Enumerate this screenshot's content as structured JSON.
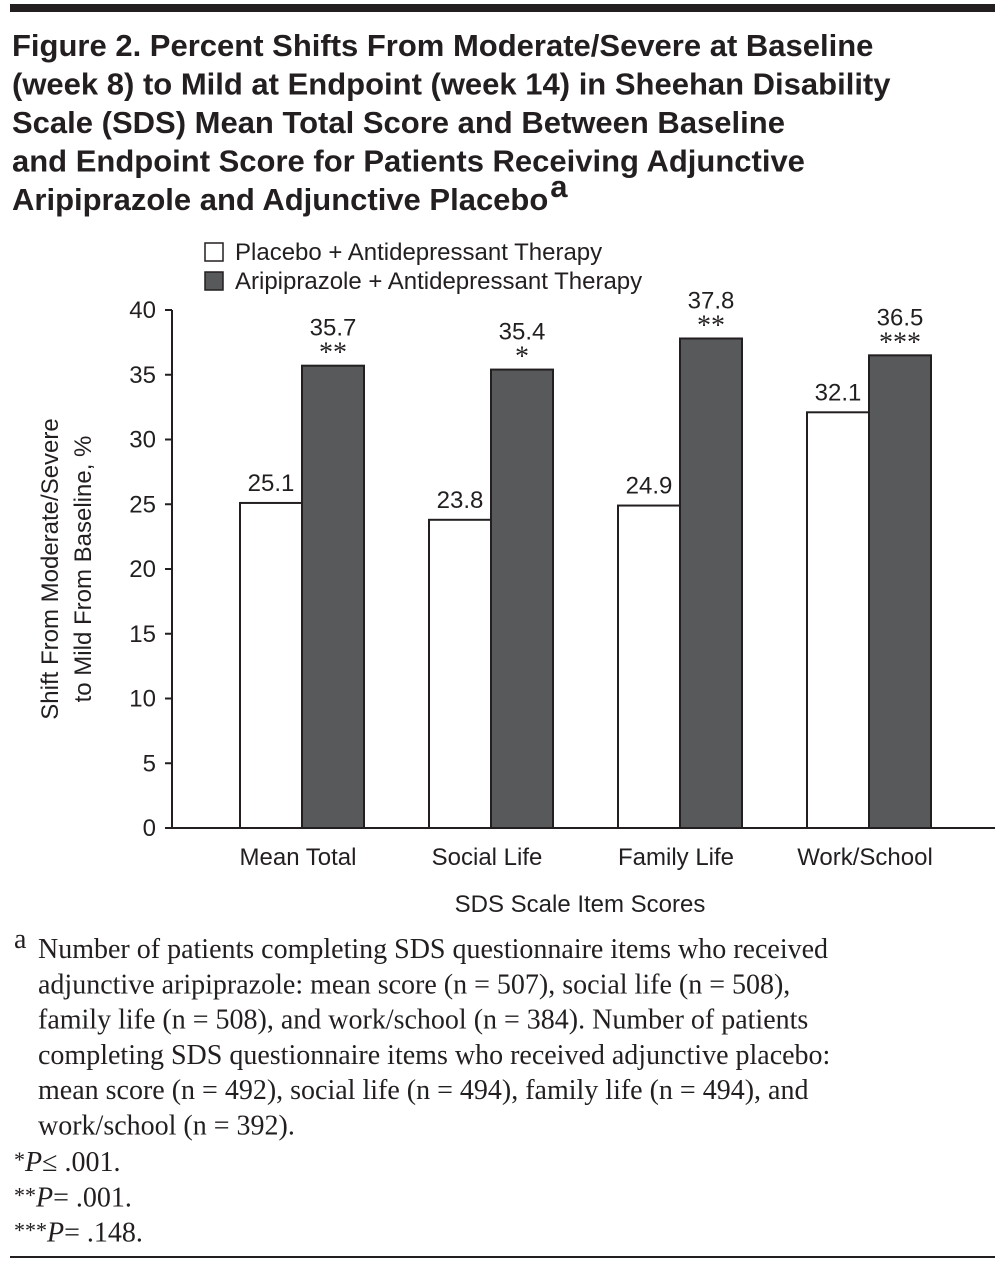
{
  "chart_data": {
    "type": "bar",
    "title": [
      "Figure 2. Percent Shifts From Moderate/Severe at Baseline",
      "(week 8) to Mild at Endpoint (week 14) in Sheehan Disability",
      "Scale (SDS) Mean Total Score and Between Baseline",
      "and Endpoint Score for Patients Receiving Adjunctive",
      "Aripiprazole and Adjunctive Placebo"
    ],
    "title_superscript": "a",
    "categories": [
      "Mean Total",
      "Social Life",
      "Family Life",
      "Work/School"
    ],
    "series": [
      {
        "name": "Placebo + Antidepressant Therapy",
        "color": "#ffffff",
        "values": [
          25.1,
          23.8,
          24.9,
          32.1
        ]
      },
      {
        "name": "Aripiprazole + Antidepressant Therapy",
        "color": "#58595b",
        "values": [
          35.7,
          35.4,
          37.8,
          36.5
        ],
        "significance": [
          "**",
          "*",
          "**",
          "***"
        ]
      }
    ],
    "xlabel": "SDS Scale Item Scores",
    "ylabel": [
      "Shift From Moderate/Severe",
      "to Mild From Baseline, %"
    ],
    "ylim": [
      0,
      40
    ],
    "yticks": [
      0,
      5,
      10,
      15,
      20,
      25,
      30,
      35,
      40
    ],
    "footnote": {
      "marker": "a",
      "lines": [
        "Number of patients completing SDS questionnaire items who received",
        "adjunctive aripiprazole: mean score (n = 507), social life (n = 508),",
        "family life (n = 508), and work/school (n = 384). Number of patients",
        "completing SDS questionnaire items who received adjunctive placebo:",
        "mean score (n = 492), social life (n = 494), family life (n = 494), and",
        "work/school (n = 392)."
      ]
    },
    "significance_notes": [
      {
        "symbol": "*",
        "stat": "P",
        "text": "≤ .001."
      },
      {
        "symbol": "**",
        "stat": "P",
        "text": "= .001."
      },
      {
        "symbol": "***",
        "stat": "P",
        "text": "= .148."
      }
    ]
  }
}
